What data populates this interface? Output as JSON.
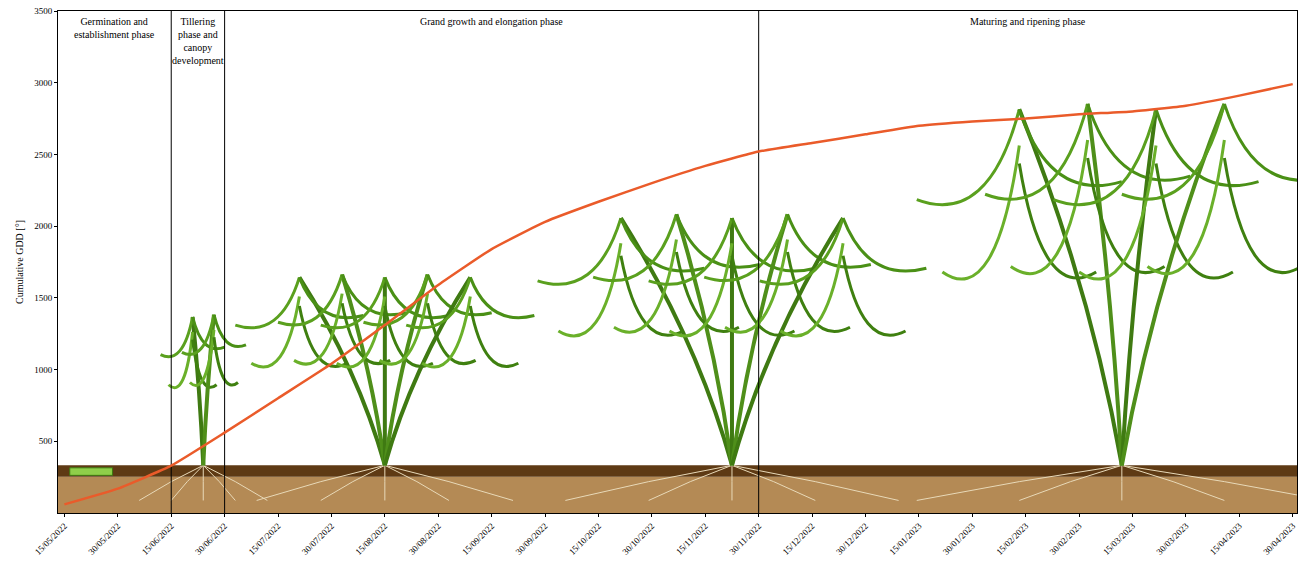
{
  "chart_data": {
    "type": "line",
    "yaxis_title": "Cumulative GDD [°]",
    "categories": [
      "15/05/2022",
      "30/05/2022",
      "15/06/2022",
      "30/06/2022",
      "15/07/2022",
      "30/07/2022",
      "15/08/2022",
      "30/08/2022",
      "15/09/2022",
      "30/09/2022",
      "15/10/2022",
      "30/10/2022",
      "15/11/2022",
      "30/11/2022",
      "15/12/2022",
      "30/12/2022",
      "15/01/2023",
      "30/01/2023",
      "15/02/2023",
      "30/02/2023",
      "15/03/2023",
      "30/03/2023",
      "15/04/2023",
      "30/04/2023"
    ],
    "values": [
      60,
      170,
      330,
      560,
      800,
      1040,
      1310,
      1590,
      1840,
      2030,
      2170,
      2300,
      2420,
      2520,
      2580,
      2640,
      2700,
      2730,
      2750,
      2780,
      2800,
      2840,
      2910,
      2990
    ],
    "color": "#ea5b2a",
    "ylim": [
      0,
      3500
    ],
    "yticks": [
      500,
      1000,
      1500,
      2000,
      2500,
      3000,
      3500
    ],
    "grid": false,
    "phase_labels": [
      "Germination and establishment phase",
      "Tillering phase and canopy development",
      "Grand growth and elongation phase",
      "Maturing and ripening phase"
    ],
    "phase_boundaries": [
      "15/06/2022",
      "30/06/2022",
      "30/11/2022"
    ]
  }
}
